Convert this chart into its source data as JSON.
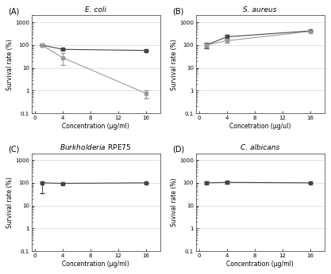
{
  "panels": [
    {
      "label": "(A)",
      "title": "E. coli",
      "title_italic": true,
      "xlabel": "Concentration (μg/ml)",
      "ylabel": "Survival rate (%)",
      "xdata": [
        1,
        4,
        16
      ],
      "lines": [
        {
          "y": [
            100,
            65,
            58
          ],
          "yerr": [
            5,
            5,
            5
          ],
          "color": "#444444",
          "marker": "s",
          "markersize": 3.5,
          "linestyle": "-"
        },
        {
          "y": [
            100,
            28,
            0.75
          ],
          "yerr_lo": [
            0,
            15,
            0.3
          ],
          "yerr_hi": [
            0,
            15,
            0.3
          ],
          "color": "#999999",
          "marker": "s",
          "markersize": 3.5,
          "linestyle": "-"
        }
      ],
      "ylim": [
        0.1,
        2000
      ],
      "yticks": [
        0.1,
        1,
        10,
        100,
        1000
      ],
      "xlim": [
        -0.5,
        18
      ],
      "xticks": [
        0,
        4,
        8,
        12,
        16
      ]
    },
    {
      "label": "(B)",
      "title": "S. aureus",
      "title_italic": true,
      "xlabel": "Concetration (μg/ul)",
      "ylabel": "Survival rate (%)",
      "xdata": [
        1,
        4,
        16
      ],
      "lines": [
        {
          "y": [
            100,
            230,
            420
          ],
          "yerr_lo": [
            30,
            40,
            0
          ],
          "yerr_hi": [
            30,
            40,
            0
          ],
          "color": "#444444",
          "marker": "s",
          "markersize": 3.5,
          "linestyle": "-"
        },
        {
          "y": [
            100,
            155,
            400
          ],
          "yerr_lo": [
            20,
            30,
            0
          ],
          "yerr_hi": [
            20,
            30,
            0
          ],
          "color": "#999999",
          "marker": "s",
          "markersize": 3.5,
          "linestyle": "-"
        }
      ],
      "ylim": [
        0.1,
        2000
      ],
      "yticks": [
        0.1,
        1,
        10,
        100,
        1000
      ],
      "xlim": [
        -0.5,
        18
      ],
      "xticks": [
        0,
        4,
        8,
        12,
        16
      ]
    },
    {
      "label": "(C)",
      "title_italic_partial": "Burkholderia",
      "title_normal": " RPE75",
      "xlabel": "Concentration (μg/ml)",
      "ylabel": "Survival rate (%)",
      "xdata": [
        1,
        4,
        16
      ],
      "lines": [
        {
          "y": [
            100,
            95,
            100
          ],
          "yerr_lo": [
            65,
            5,
            3
          ],
          "yerr_hi": [
            10,
            5,
            3
          ],
          "color": "#444444",
          "marker": "s",
          "markersize": 3.5,
          "linestyle": "-"
        }
      ],
      "ylim": [
        0.1,
        2000
      ],
      "yticks": [
        0.1,
        1,
        10,
        100,
        1000
      ],
      "xlim": [
        -0.5,
        18
      ],
      "xticks": [
        0,
        4,
        8,
        12,
        16
      ]
    },
    {
      "label": "(D)",
      "title": "C. albicans",
      "title_italic": true,
      "xlabel": "Concentration (μg/ml)",
      "ylabel": "Suvival rate (%)",
      "xdata": [
        1,
        4,
        16
      ],
      "lines": [
        {
          "y": [
            100,
            105,
            100
          ],
          "yerr_lo": [
            8,
            10,
            3
          ],
          "yerr_hi": [
            12,
            12,
            3
          ],
          "color": "#444444",
          "marker": "s",
          "markersize": 3.5,
          "linestyle": "-"
        }
      ],
      "ylim": [
        0.1,
        2000
      ],
      "yticks": [
        0.1,
        1,
        10,
        100,
        1000
      ],
      "xlim": [
        -0.5,
        18
      ],
      "xticks": [
        0,
        4,
        8,
        12,
        16
      ]
    }
  ],
  "fig_bg": "#ffffff",
  "ax_bg": "#ffffff",
  "grid_color": "#cccccc",
  "spine_color": "#555555"
}
